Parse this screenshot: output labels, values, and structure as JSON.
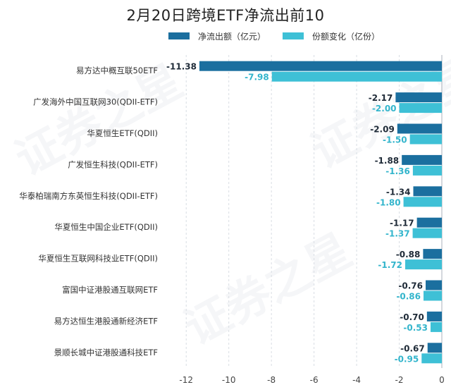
{
  "chart_data": {
    "type": "bar",
    "orientation": "horizontal",
    "title": "2月20日跨境ETF净流出前10",
    "categories": [
      "易方达中概互联50ETF",
      "广发海外中国互联网30(QDII-ETF)",
      "华夏恒生ETF(QDII)",
      "广发恒生科技(QDII-ETF)",
      "华泰柏瑞南方东英恒生科技(QDII-ETF)",
      "华夏恒生中国企业ETF(QDII)",
      "华夏恒生互联网科技业ETF(QDII)",
      "富国中证港股通互联网ETF",
      "易方达恒生港股通新经济ETF",
      "景顺长城中证港股通科技ETF"
    ],
    "series": [
      {
        "name": "净流出额（亿元）",
        "color": "#1b6f9f",
        "values": [
          -11.38,
          -2.17,
          -2.09,
          -1.88,
          -1.34,
          -1.17,
          -0.88,
          -0.76,
          -0.7,
          -0.67
        ],
        "labels": [
          "-11.38",
          "-2.17",
          "-2.09",
          "-1.88",
          "-1.34",
          "-1.17",
          "-0.88",
          "-0.76",
          "-0.70",
          "-0.67"
        ]
      },
      {
        "name": "份额变化（亿份）",
        "color": "#3ec0d6",
        "values": [
          -7.98,
          -2.0,
          -1.5,
          -1.36,
          -1.8,
          -1.37,
          -1.72,
          -0.86,
          -0.53,
          -0.95
        ],
        "labels": [
          "-7.98",
          "-2.00",
          "-1.50",
          "-1.36",
          "-1.80",
          "-1.37",
          "-1.72",
          "-0.86",
          "-0.53",
          "-0.95"
        ]
      }
    ],
    "xlim": [
      -13,
      0
    ],
    "xticks": [
      -12,
      -10,
      -8,
      -6,
      -4,
      -2,
      0
    ],
    "xtick_labels": [
      "-12",
      "-10",
      "-8",
      "-6",
      "-4",
      "-2",
      "0"
    ],
    "grid": "vertical dashed",
    "legend": "top"
  },
  "watermark": "证券之星"
}
